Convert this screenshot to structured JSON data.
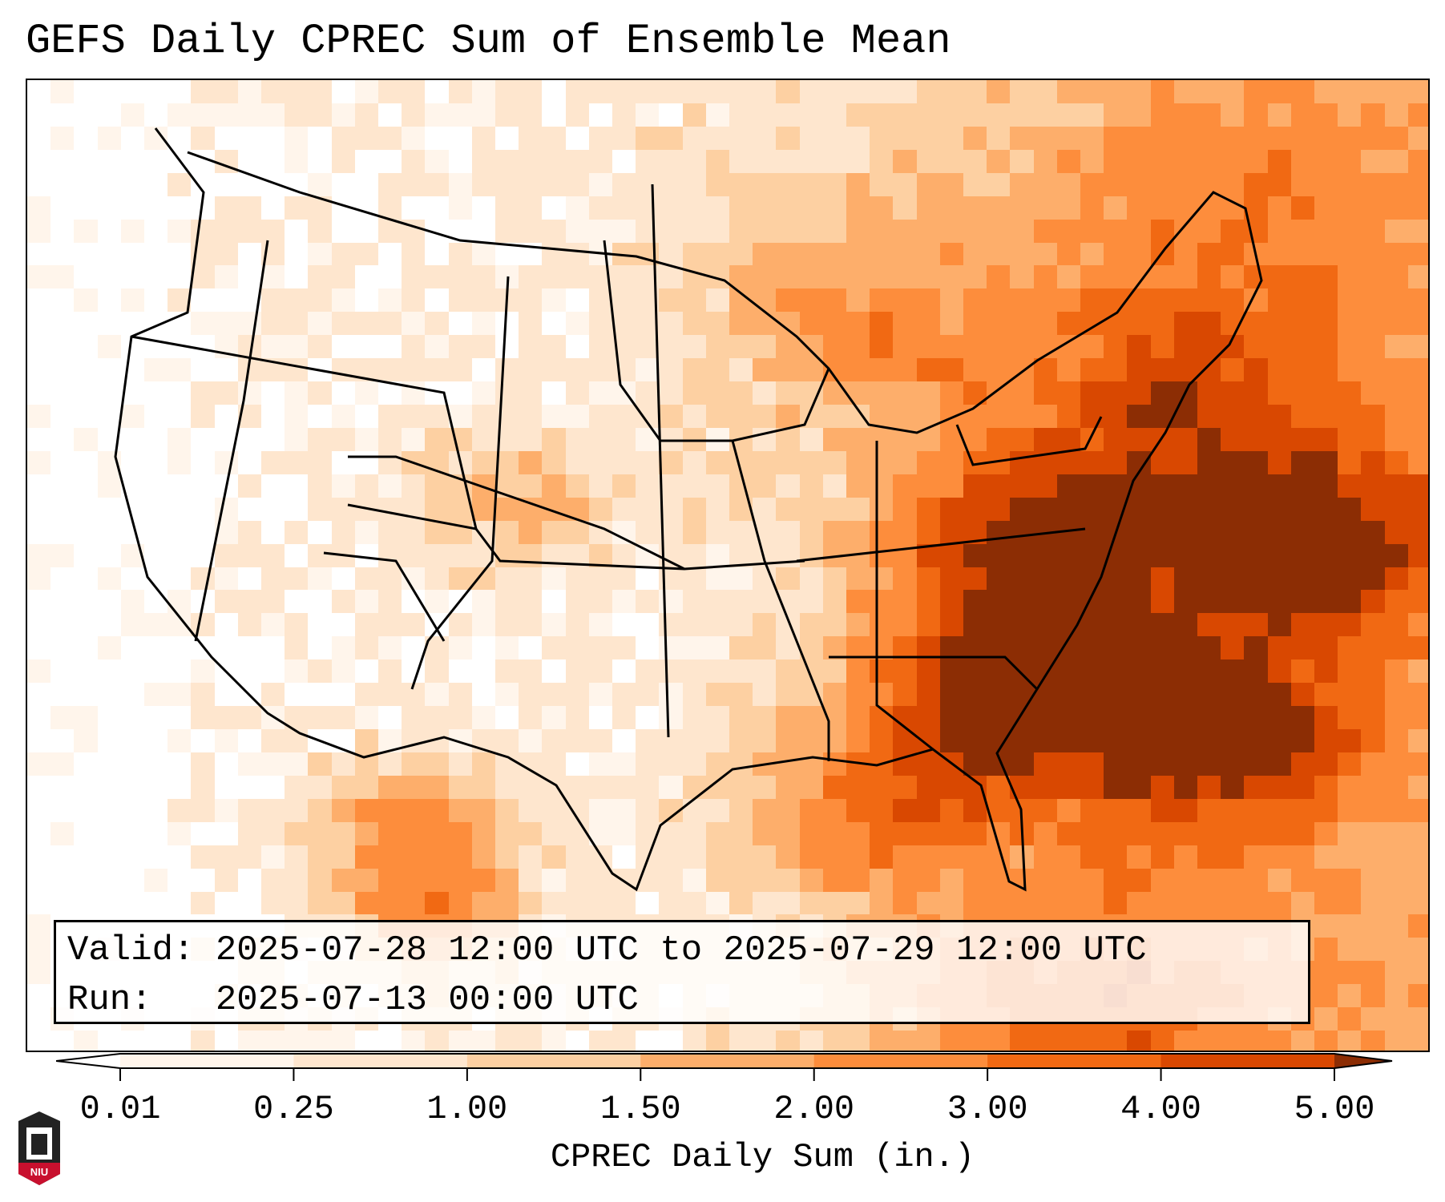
{
  "title": "GEFS Daily CPREC Sum of Ensemble Mean",
  "info": {
    "valid_label": "Valid:",
    "valid_value": "2025-07-28 12:00 UTC to 2025-07-29 12:00 UTC",
    "run_label": "Run:",
    "run_value": "2025-07-13 00:00 UTC"
  },
  "colorbar": {
    "label": "CPREC Daily Sum (in.)",
    "ticks": [
      "0.01",
      "0.25",
      "1.00",
      "1.50",
      "2.00",
      "3.00",
      "4.00",
      "5.00"
    ],
    "colors": [
      "#fff5eb",
      "#fee6ce",
      "#fdd0a2",
      "#fdae6b",
      "#fd8d3c",
      "#f16913",
      "#d94801",
      "#8c2d04"
    ],
    "under_color": "#ffffff",
    "over_color": "#8c2d04"
  },
  "logo": {
    "text": "NIU"
  }
}
